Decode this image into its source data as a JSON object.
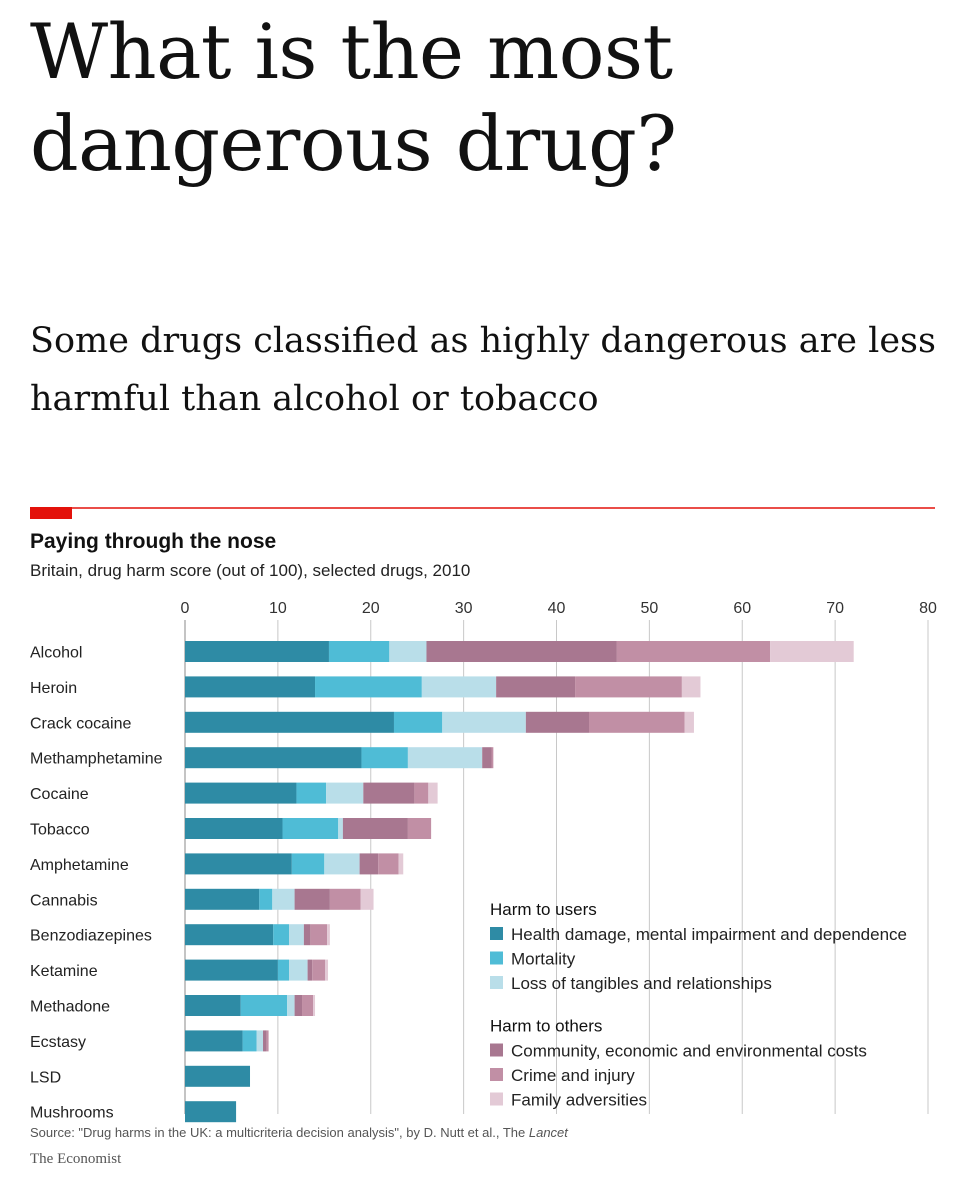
{
  "headline": "What is the most dangerous drug?",
  "subheadline": "Some drugs classified as highly dangerous are less harmful than alcohol or tobacco",
  "colors": {
    "accent_red": "#e3120b",
    "health": "#2e8ba5",
    "mortality": "#4fbcd6",
    "tangibles": "#b9dee9",
    "community": "#a87790",
    "crime": "#c18fa5",
    "family": "#e3cad6",
    "grid": "#c8c8c8"
  },
  "chart_data": {
    "type": "bar",
    "orientation": "horizontal",
    "stacked": true,
    "title": "Paying through the nose",
    "subtitle": "Britain, drug harm score (out of 100), selected drugs, 2010",
    "xlim": [
      0,
      80
    ],
    "xticks": [
      0,
      10,
      20,
      30,
      40,
      50,
      60,
      70,
      80
    ],
    "grid": true,
    "legend_position": "bottom-right",
    "categories": [
      "Alcohol",
      "Heroin",
      "Crack cocaine",
      "Methamphetamine",
      "Cocaine",
      "Tobacco",
      "Amphetamine",
      "Cannabis",
      "Benzodiazepines",
      "Ketamine",
      "Methadone",
      "Ecstasy",
      "LSD",
      "Mushrooms"
    ],
    "series": [
      {
        "name": "Health damage, mental impairment and dependence",
        "group": "Harm to users",
        "color_key": "health",
        "values": [
          15.5,
          14,
          22.5,
          19,
          12,
          10.5,
          11.5,
          8,
          9.5,
          10,
          6,
          6.2,
          7,
          5.5
        ]
      },
      {
        "name": "Mortality",
        "group": "Harm to users",
        "color_key": "mortality",
        "values": [
          6.5,
          11.5,
          5.2,
          5,
          3.2,
          6,
          3.5,
          1.4,
          1.7,
          1.2,
          5,
          1.5,
          0,
          0
        ]
      },
      {
        "name": "Loss of tangibles and relationships",
        "group": "Harm to users",
        "color_key": "tangibles",
        "values": [
          4,
          8,
          9,
          8,
          4,
          0.5,
          3.8,
          2.4,
          1.6,
          2,
          0.8,
          0.7,
          0,
          0
        ]
      },
      {
        "name": "Community, economic and environmental costs",
        "group": "Harm to others",
        "color_key": "community",
        "values": [
          20.5,
          8.5,
          6.8,
          1,
          5.5,
          7,
          2,
          3.8,
          0.7,
          0.5,
          0.8,
          0.4,
          0,
          0
        ]
      },
      {
        "name": "Crime and injury",
        "group": "Harm to others",
        "color_key": "crime",
        "values": [
          16.5,
          11.5,
          10.3,
          0.2,
          1.5,
          2.5,
          2.2,
          3.3,
          1.8,
          1.4,
          1.2,
          0.2,
          0,
          0
        ]
      },
      {
        "name": "Family adversities",
        "group": "Harm to others",
        "color_key": "family",
        "values": [
          9,
          2,
          1,
          0,
          1,
          0,
          0.5,
          1.4,
          0.3,
          0.3,
          0.2,
          0,
          0,
          0
        ]
      }
    ],
    "legend_groups": [
      "Harm to users",
      "Harm to others"
    ],
    "source_prefix": "Source: \"Drug harms in the UK: a multicriteria decision analysis\", by D. Nutt et al., The ",
    "source_journal": "Lancet",
    "brand": "The Economist"
  }
}
